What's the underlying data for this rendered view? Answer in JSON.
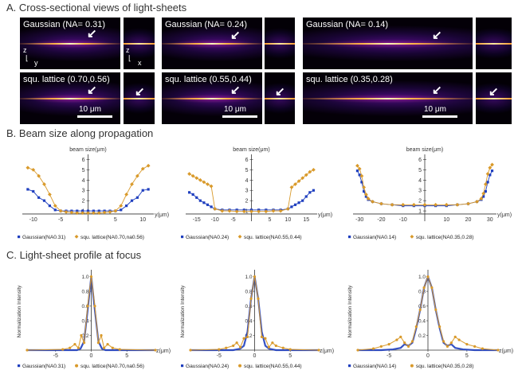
{
  "sections": {
    "a": "A. Cross-sectional views of light-sheets",
    "b": "B. Beam size along propagation",
    "c": "C. Light-sheet profile at focus"
  },
  "panels": [
    {
      "gaussian_label": "Gaussian (NA= 0.31)",
      "lattice_label": "squ. lattice (0.70,0.56)",
      "scale": "10 μm"
    },
    {
      "gaussian_label": "Gaussian (NA= 0.24)",
      "lattice_label": "squ. lattice (0.55,0.44)",
      "scale": "10 μm"
    },
    {
      "gaussian_label": "Gaussian (NA= 0.14)",
      "lattice_label": "squ. lattice (0.35,0.28)",
      "scale": "10 μm"
    }
  ],
  "axis_indicators": {
    "z": "z",
    "y": "y",
    "x": "x"
  },
  "colors": {
    "gaussian": "#1f3fbf",
    "lattice": "#d99a2b"
  },
  "chart_data": [
    {
      "type": "line",
      "title": "",
      "ylabel": "beam size(μm)",
      "xlabel": "y(μm)",
      "ylim": [
        0,
        6.5
      ],
      "xlim": [
        -12,
        12
      ],
      "xticks": [
        -10,
        -5,
        5,
        10
      ],
      "yticks": [
        1,
        2,
        3,
        4,
        5,
        6
      ],
      "series": [
        {
          "name": "Gaussian(NA0.31)",
          "x": [
            -11,
            -10,
            -9,
            -8,
            -7,
            -6,
            -5,
            -4,
            -3,
            -2,
            -1,
            0,
            1,
            2,
            3,
            4,
            5,
            6,
            7,
            8,
            9,
            10,
            11
          ],
          "values": [
            3.1,
            2.9,
            2.3,
            2.0,
            1.5,
            1.1,
            1.0,
            1.0,
            1.0,
            1.0,
            1.0,
            1.0,
            1.0,
            1.0,
            1.0,
            1.0,
            1.0,
            1.1,
            1.5,
            2.0,
            2.3,
            3.0,
            3.1
          ]
        },
        {
          "name": "squ. lattice(NA0.70,na0.56)",
          "x": [
            -11,
            -10,
            -9,
            -8,
            -7,
            -6,
            -5,
            -4,
            -3,
            -2,
            -1,
            0,
            1,
            2,
            3,
            4,
            5,
            6,
            7,
            8,
            9,
            10,
            11
          ],
          "values": [
            5.2,
            5.0,
            4.4,
            3.6,
            2.6,
            1.5,
            1.0,
            0.9,
            0.85,
            0.8,
            0.8,
            0.8,
            0.8,
            0.8,
            0.85,
            0.9,
            1.0,
            1.5,
            2.6,
            3.6,
            4.4,
            5.1,
            5.4
          ]
        }
      ]
    },
    {
      "type": "line",
      "title": "",
      "ylabel": "beam size(μm)",
      "xlabel": "y(μm)",
      "ylim": [
        0,
        6.5
      ],
      "xlim": [
        -18,
        18
      ],
      "xticks": [
        -15,
        -10,
        -5,
        5,
        10,
        15
      ],
      "yticks": [
        1,
        2,
        3,
        4,
        5,
        6
      ],
      "series": [
        {
          "name": "Gaussian(NA0.24)",
          "x": [
            -17,
            -16,
            -15,
            -14,
            -13,
            -12,
            -11,
            -10,
            -8,
            -6,
            -4,
            -2,
            0,
            2,
            4,
            6,
            8,
            10,
            11,
            12,
            13,
            14,
            15,
            16,
            17
          ],
          "values": [
            2.8,
            2.6,
            2.3,
            2.0,
            1.8,
            1.6,
            1.4,
            1.2,
            1.1,
            1.1,
            1.1,
            1.1,
            1.1,
            1.1,
            1.1,
            1.1,
            1.1,
            1.2,
            1.4,
            1.6,
            1.8,
            2.0,
            2.4,
            2.8,
            3.0
          ]
        },
        {
          "name": "squ. lattice(NA0.55,0.44)",
          "x": [
            -17,
            -16,
            -15,
            -14,
            -13,
            -12,
            -11,
            -10,
            -8,
            -6,
            -4,
            -2,
            0,
            2,
            4,
            6,
            8,
            10,
            11,
            12,
            13,
            14,
            15,
            16,
            17
          ],
          "values": [
            4.6,
            4.4,
            4.2,
            4.0,
            3.8,
            3.6,
            3.4,
            1.2,
            1.0,
            1.0,
            0.95,
            0.95,
            0.95,
            0.95,
            0.95,
            1.0,
            1.0,
            1.2,
            3.3,
            3.6,
            3.9,
            4.2,
            4.5,
            4.8,
            5.0
          ]
        }
      ]
    },
    {
      "type": "line",
      "title": "",
      "ylabel": "beam size(μm)",
      "xlabel": "y(μm)",
      "ylim": [
        0,
        6.5
      ],
      "xlim": [
        -33,
        33
      ],
      "xticks": [
        -30,
        -20,
        -10,
        10,
        20,
        30
      ],
      "yticks": [
        1,
        2,
        3,
        4,
        5,
        6
      ],
      "series": [
        {
          "name": "Gaussian(NA0.14)",
          "x": [
            -31,
            -30,
            -29,
            -28,
            -27,
            -26,
            -24,
            -20,
            -15,
            -10,
            -5,
            0,
            5,
            10,
            15,
            20,
            24,
            26,
            27,
            28,
            29,
            30,
            31
          ],
          "values": [
            4.9,
            4.5,
            3.8,
            2.9,
            2.4,
            2.1,
            1.9,
            1.7,
            1.6,
            1.5,
            1.5,
            1.5,
            1.5,
            1.5,
            1.6,
            1.7,
            1.9,
            2.1,
            2.4,
            2.9,
            3.8,
            4.5,
            4.9
          ]
        },
        {
          "name": "squ. lattice(NA0.35,0.28)",
          "x": [
            -31,
            -30,
            -29,
            -28,
            -27,
            -26,
            -24,
            -20,
            -15,
            -10,
            -5,
            0,
            5,
            10,
            15,
            20,
            24,
            26,
            27,
            28,
            29,
            30,
            31
          ],
          "values": [
            5.4,
            5.1,
            4.4,
            3.3,
            2.6,
            2.2,
            1.9,
            1.7,
            1.6,
            1.6,
            1.6,
            1.6,
            1.6,
            1.6,
            1.6,
            1.7,
            1.9,
            2.2,
            2.7,
            3.6,
            4.6,
            5.2,
            5.5
          ]
        }
      ]
    },
    {
      "type": "line",
      "title": "",
      "ylabel": "Normalization Intensity",
      "xlabel": "z(μm)",
      "ylim": [
        0,
        1.05
      ],
      "xlim": [
        -9,
        9
      ],
      "xticks": [
        -5,
        0,
        5
      ],
      "yticks": [
        0.2,
        0.4,
        0.6,
        0.8,
        1.0
      ],
      "series": [
        {
          "name": "Gaussian(NA0.31)",
          "x": [
            -9,
            -4,
            -2,
            -1.5,
            -1,
            -0.5,
            0,
            0.5,
            1,
            1.5,
            2,
            4,
            9
          ],
          "values": [
            0,
            0,
            0,
            0.02,
            0.12,
            0.55,
            1.0,
            0.55,
            0.12,
            0.02,
            0,
            0,
            0
          ]
        },
        {
          "name": "squ. lattice(NA0.70,na0.56)",
          "x": [
            -9,
            -4,
            -3,
            -2.3,
            -1.8,
            -1.4,
            -1,
            -0.5,
            0,
            0.5,
            1,
            1.4,
            1.8,
            2.3,
            3,
            4,
            9
          ],
          "values": [
            0,
            0.01,
            0.03,
            0.08,
            0.03,
            0.2,
            0.1,
            0.6,
            1.0,
            0.6,
            0.1,
            0.2,
            0.03,
            0.08,
            0.03,
            0.01,
            0
          ]
        }
      ]
    },
    {
      "type": "line",
      "title": "",
      "ylabel": "Normalization Intensity",
      "xlabel": "z(μm)",
      "ylim": [
        0,
        1.05
      ],
      "xlim": [
        -9,
        9
      ],
      "xticks": [
        -5,
        0,
        5
      ],
      "yticks": [
        0.2,
        0.4,
        0.6,
        0.8,
        1.0
      ],
      "series": [
        {
          "name": "Gaussian(NA0.24)",
          "x": [
            -9,
            -5,
            -3,
            -2,
            -1.5,
            -1,
            -0.5,
            0,
            0.5,
            1,
            1.5,
            2,
            3,
            5,
            9
          ],
          "values": [
            0,
            0,
            0,
            0.02,
            0.06,
            0.25,
            0.7,
            1.0,
            0.7,
            0.25,
            0.06,
            0.02,
            0,
            0,
            0
          ]
        },
        {
          "name": "squ. lattice(NA0.55,0.44)",
          "x": [
            -9,
            -5,
            -4,
            -3,
            -2.5,
            -2,
            -1.5,
            -1,
            -0.5,
            0,
            0.5,
            1,
            1.5,
            2,
            2.5,
            3,
            4,
            5,
            9
          ],
          "values": [
            0,
            0.01,
            0.03,
            0.06,
            0.1,
            0.04,
            0.16,
            0.18,
            0.7,
            1.0,
            0.7,
            0.18,
            0.16,
            0.04,
            0.1,
            0.06,
            0.03,
            0.01,
            0
          ]
        }
      ]
    },
    {
      "type": "line",
      "title": "",
      "ylabel": "Normalization Intensity",
      "xlabel": "z(μm)",
      "ylim": [
        0,
        1.05
      ],
      "xlim": [
        -9,
        9
      ],
      "xticks": [
        -5,
        0,
        5
      ],
      "yticks": [
        0.2,
        0.4,
        0.6,
        0.8,
        1.0
      ],
      "series": [
        {
          "name": "Gaussian(NA0.14)",
          "x": [
            -9,
            -6,
            -4.5,
            -3.5,
            -3,
            -2.5,
            -2,
            -1.5,
            -1,
            -0.5,
            0,
            0.5,
            1,
            1.5,
            2,
            2.5,
            3,
            3.5,
            4.5,
            6,
            9
          ],
          "values": [
            0,
            0,
            0.01,
            0.03,
            0.08,
            0.06,
            0.1,
            0.3,
            0.55,
            0.85,
            1.0,
            0.85,
            0.55,
            0.3,
            0.1,
            0.06,
            0.08,
            0.03,
            0.01,
            0,
            0
          ]
        },
        {
          "name": "squ. lattice(NA0.35,0.28)",
          "x": [
            -9,
            -7,
            -6,
            -5,
            -4,
            -3.5,
            -3,
            -2.5,
            -2,
            -1.5,
            -1,
            -0.5,
            0,
            0.5,
            1,
            1.5,
            2,
            2.5,
            3,
            3.5,
            4,
            5,
            6,
            7,
            9
          ],
          "values": [
            0,
            0.02,
            0.05,
            0.08,
            0.14,
            0.18,
            0.1,
            0.05,
            0.12,
            0.32,
            0.55,
            0.85,
            1.0,
            0.85,
            0.55,
            0.32,
            0.12,
            0.05,
            0.1,
            0.18,
            0.14,
            0.08,
            0.05,
            0.02,
            0
          ]
        }
      ]
    }
  ]
}
